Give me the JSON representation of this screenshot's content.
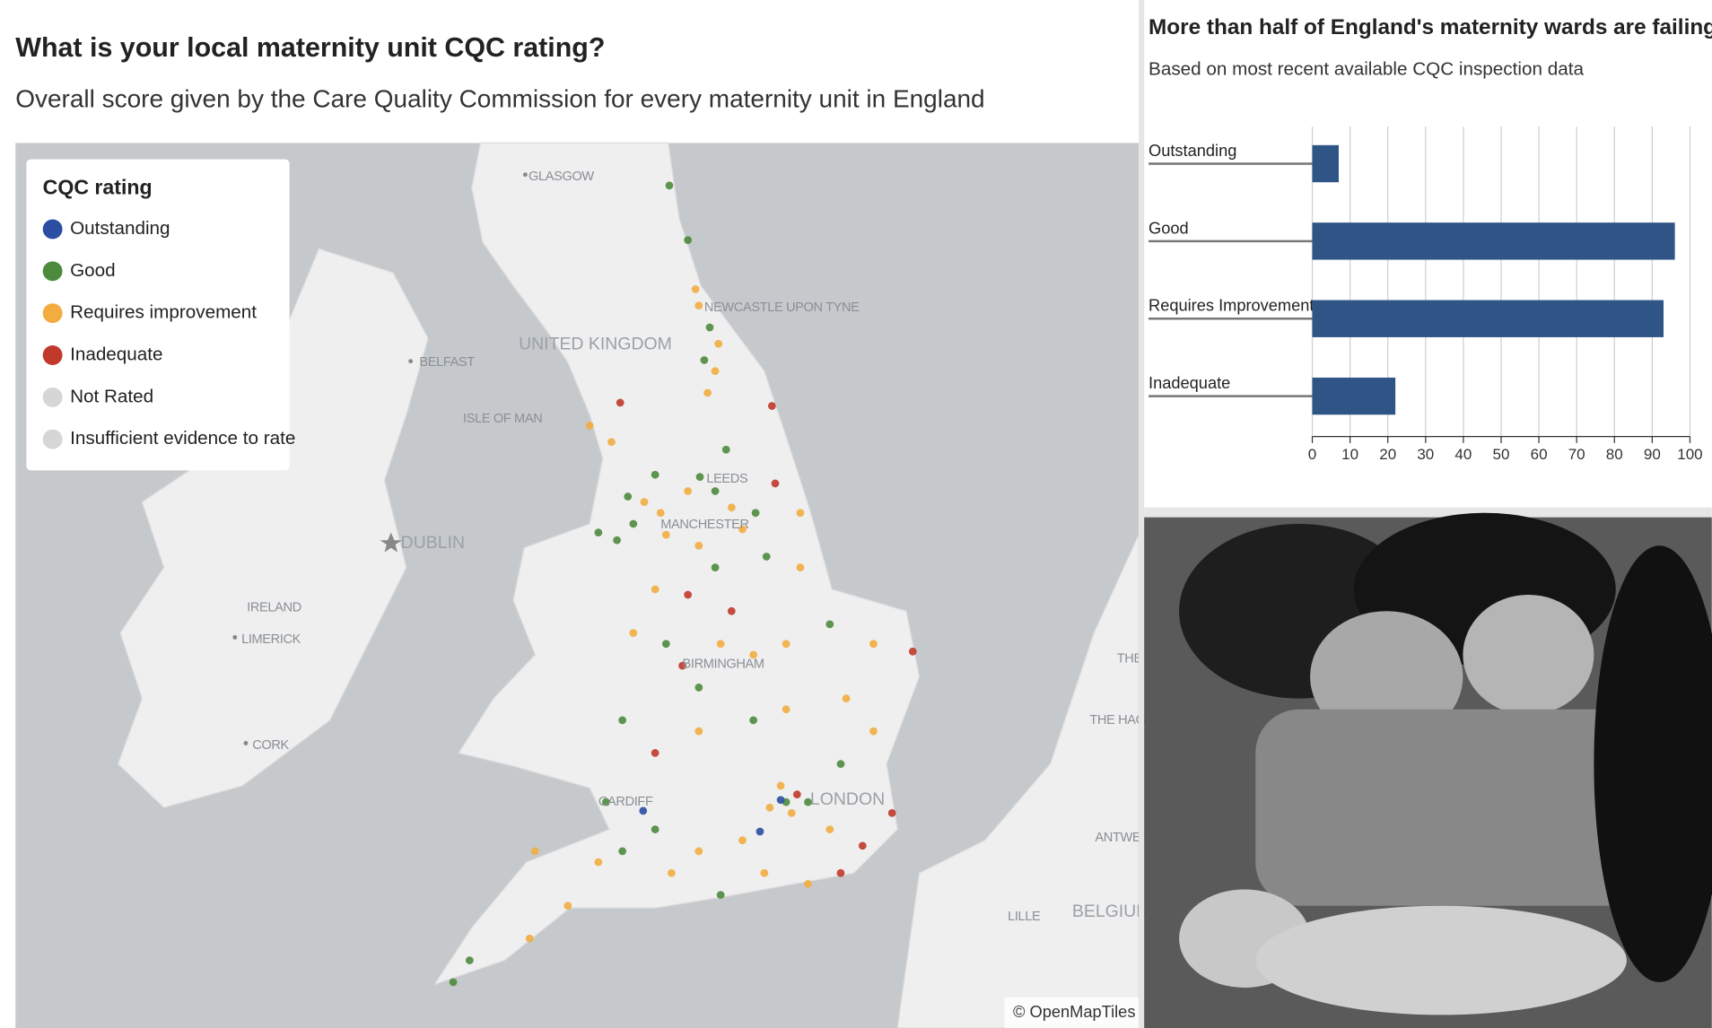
{
  "map": {
    "title": "What is your local maternity unit CQC rating?",
    "subtitle": "Overall score given by the Care Quality Commission for every maternity unit in England",
    "legend": {
      "title": "CQC rating",
      "items": [
        {
          "label": "Outstanding",
          "color": "#2b4ea2"
        },
        {
          "label": "Good",
          "color": "#4c8a3d"
        },
        {
          "label": "Requires improvement",
          "color": "#f2ac3f"
        },
        {
          "label": "Inadequate",
          "color": "#c0392b"
        },
        {
          "label": "Not Rated",
          "color": "#d6d6d6"
        },
        {
          "label": "Insufficient evidence to rate",
          "color": "#d6d6d6"
        }
      ]
    },
    "places": [
      "GLASGOW",
      "NEWCASTLE UPON TYNE",
      "UNITED KINGDOM",
      "BELFAST",
      "ISLE OF MAN",
      "LEEDS",
      "DUBLIN",
      "MANCHESTER",
      "IRELAND",
      "LIMERICK",
      "BIRMINGHAM",
      "CORK",
      "CARDIFF",
      "LONDON",
      "THE HAG",
      "ANTWER",
      "LILLE",
      "BELGIUM",
      "THE"
    ],
    "attribution": "© OpenMapTiles"
  },
  "chart_data": {
    "type": "bar",
    "orientation": "horizontal",
    "title": "More than half of England's maternity wards are failing",
    "subtitle": "Based on most recent available CQC inspection data",
    "categories": [
      "Outstanding",
      "Good",
      "Requires Improvement",
      "Inadequate"
    ],
    "values": [
      7,
      96,
      93,
      22
    ],
    "color": "#2e5586",
    "xlim": [
      0,
      100
    ],
    "xticks": [
      0,
      10,
      20,
      30,
      40,
      50,
      60,
      70,
      80,
      90,
      100
    ],
    "grid": true
  }
}
